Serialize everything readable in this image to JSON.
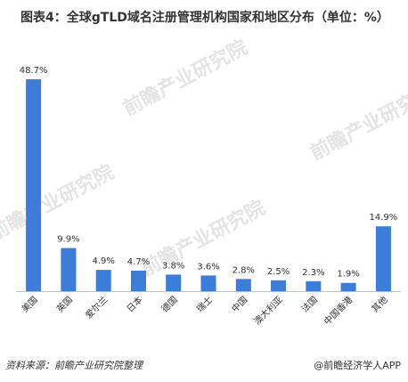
{
  "title": "图表4：全球gTLD域名注册管理机构国家和地区分布（单位：%）",
  "watermark": "前瞻产业研究院",
  "source": "资料来源：前瞻产业研究院整理",
  "brand": "@前瞻经济学人APP",
  "colors": {
    "bar": "#3b7dd8",
    "axis": "#bfbfbf",
    "text": "#333333"
  },
  "chart_data": {
    "type": "bar",
    "categories": [
      "美国",
      "英国",
      "爱尔兰",
      "日本",
      "德国",
      "瑞士",
      "中国",
      "澳大利亚",
      "法国",
      "中国香港",
      "其他"
    ],
    "values": [
      48.7,
      9.9,
      4.9,
      4.7,
      3.8,
      3.6,
      2.8,
      2.5,
      2.3,
      1.9,
      14.9
    ],
    "value_labels": [
      "48.7%",
      "9.9%",
      "4.9%",
      "4.7%",
      "3.8%",
      "3.6%",
      "2.8%",
      "2.5%",
      "2.3%",
      "1.9%",
      "14.9%"
    ],
    "ylim": [
      0,
      50
    ],
    "grid": false,
    "legend": "none"
  }
}
